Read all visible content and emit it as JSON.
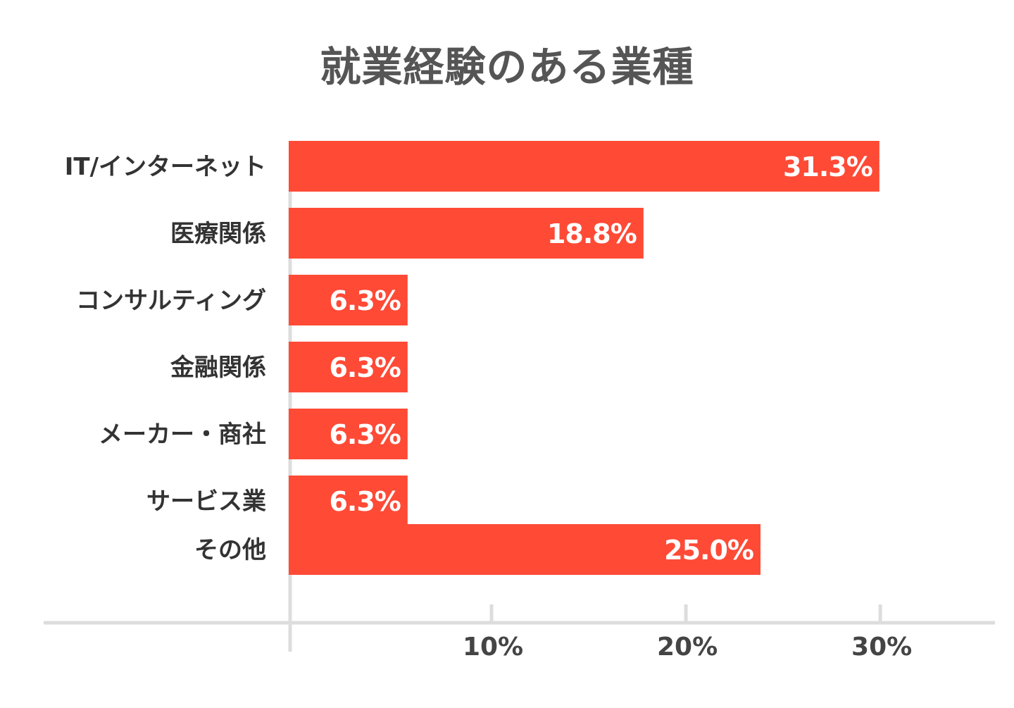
{
  "chart_data": {
    "type": "bar",
    "orientation": "horizontal",
    "title": "就業経験のある業種",
    "categories": [
      "IT/インターネット",
      "医療関係",
      "コンサルティング",
      "金融関係",
      "メーカー・商社",
      "サービス業",
      "その他"
    ],
    "values": [
      31.3,
      18.8,
      6.3,
      6.3,
      6.3,
      6.3,
      25.0
    ],
    "value_labels": [
      "31.3%",
      "18.8%",
      "6.3%",
      "6.3%",
      "6.3%",
      "6.3%",
      "25.0%"
    ],
    "xticks": [
      10,
      20,
      30
    ],
    "xtick_labels": [
      "10%",
      "20%",
      "30%"
    ],
    "xlabel": "",
    "ylabel": "",
    "xlim": [
      0,
      35
    ],
    "grid": false,
    "bar_color": "#ff4a36",
    "axis_color": "#dddddd"
  }
}
